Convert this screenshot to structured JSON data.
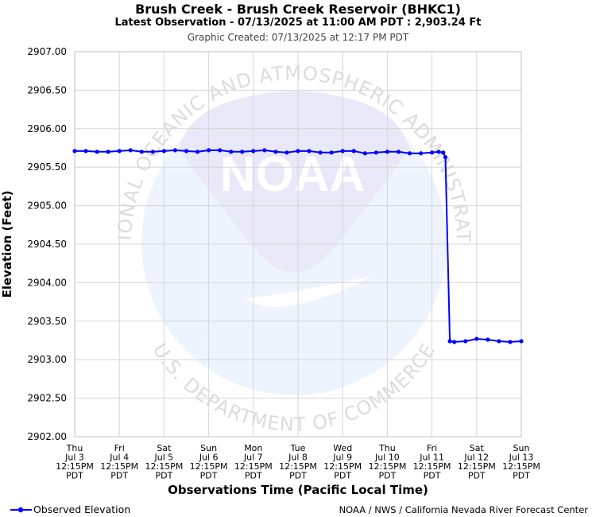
{
  "header": {
    "title": "Brush Creek - Brush Creek Reservoir (BHKC1)",
    "latest": "Latest Observation - 07/13/2025 at 11:00 AM PDT : 2,903.24 Ft",
    "created": "Graphic Created: 07/13/2025 at 12:17 PM PDT"
  },
  "watermark": {
    "text_top": "NATIONAL OCEANIC AND ATMOSPHERIC ADMINISTRATION",
    "text_bottom": "U.S. DEPARTMENT OF COMMERCE",
    "logo_text": "NOAA"
  },
  "legend": {
    "label": "Observed Elevation"
  },
  "credit": "NOAA / NWS / California Nevada River Forecast Center",
  "chart_data": {
    "type": "line",
    "ylabel": "Elevation (Feet)",
    "xlabel": "Observations Time (Pacific Local Time)",
    "ylim": [
      2902.0,
      2907.0
    ],
    "yticks": [
      "2907.00",
      "2906.50",
      "2906.00",
      "2905.50",
      "2905.00",
      "2904.50",
      "2904.00",
      "2903.50",
      "2903.00",
      "2902.50",
      "2902.00"
    ],
    "ytick_values": [
      2907.0,
      2906.5,
      2906.0,
      2905.5,
      2905.0,
      2904.5,
      2904.0,
      2903.5,
      2903.0,
      2902.5,
      2902.0
    ],
    "xlim_days": [
      0,
      10
    ],
    "xticks": [
      [
        "Thu",
        "Jul 3",
        "12:15PM",
        "PDT"
      ],
      [
        "Fri",
        "Jul 4",
        "12:15PM",
        "PDT"
      ],
      [
        "Sat",
        "Jul 5",
        "12:15PM",
        "PDT"
      ],
      [
        "Sun",
        "Jul 6",
        "12:15PM",
        "PDT"
      ],
      [
        "Mon",
        "Jul 7",
        "12:15PM",
        "PDT"
      ],
      [
        "Tue",
        "Jul 8",
        "12:15PM",
        "PDT"
      ],
      [
        "Wed",
        "Jul 9",
        "12:15PM",
        "PDT"
      ],
      [
        "Thu",
        "Jul 10",
        "12:15PM",
        "PDT"
      ],
      [
        "Fri",
        "Jul 11",
        "12:15PM",
        "PDT"
      ],
      [
        "Sat",
        "Jul 12",
        "12:15PM",
        "PDT"
      ],
      [
        "Sun",
        "Jul 13",
        "12:15PM",
        "PDT"
      ]
    ],
    "grid": true,
    "colors": {
      "series": "#0000ff",
      "grid": "#d6d6d6"
    },
    "series": [
      {
        "name": "Observed Elevation",
        "x": [
          0.0,
          0.25,
          0.5,
          0.75,
          1.0,
          1.25,
          1.5,
          1.75,
          2.0,
          2.25,
          2.5,
          2.75,
          3.0,
          3.25,
          3.5,
          3.75,
          4.0,
          4.25,
          4.5,
          4.75,
          5.0,
          5.25,
          5.5,
          5.75,
          6.0,
          6.25,
          6.5,
          6.75,
          7.0,
          7.25,
          7.5,
          7.75,
          8.0,
          8.15,
          8.25,
          8.3,
          8.4,
          8.5,
          8.75,
          9.0,
          9.25,
          9.5,
          9.75,
          10.0
        ],
        "y": [
          2905.71,
          2905.71,
          2905.7,
          2905.7,
          2905.71,
          2905.72,
          2905.7,
          2905.7,
          2905.71,
          2905.72,
          2905.71,
          2905.7,
          2905.72,
          2905.72,
          2905.7,
          2905.7,
          2905.71,
          2905.72,
          2905.7,
          2905.69,
          2905.71,
          2905.71,
          2905.69,
          2905.69,
          2905.71,
          2905.71,
          2905.68,
          2905.69,
          2905.7,
          2905.7,
          2905.68,
          2905.68,
          2905.69,
          2905.7,
          2905.69,
          2905.63,
          2903.24,
          2903.23,
          2903.24,
          2903.27,
          2903.26,
          2903.24,
          2903.23,
          2903.24
        ]
      }
    ]
  }
}
